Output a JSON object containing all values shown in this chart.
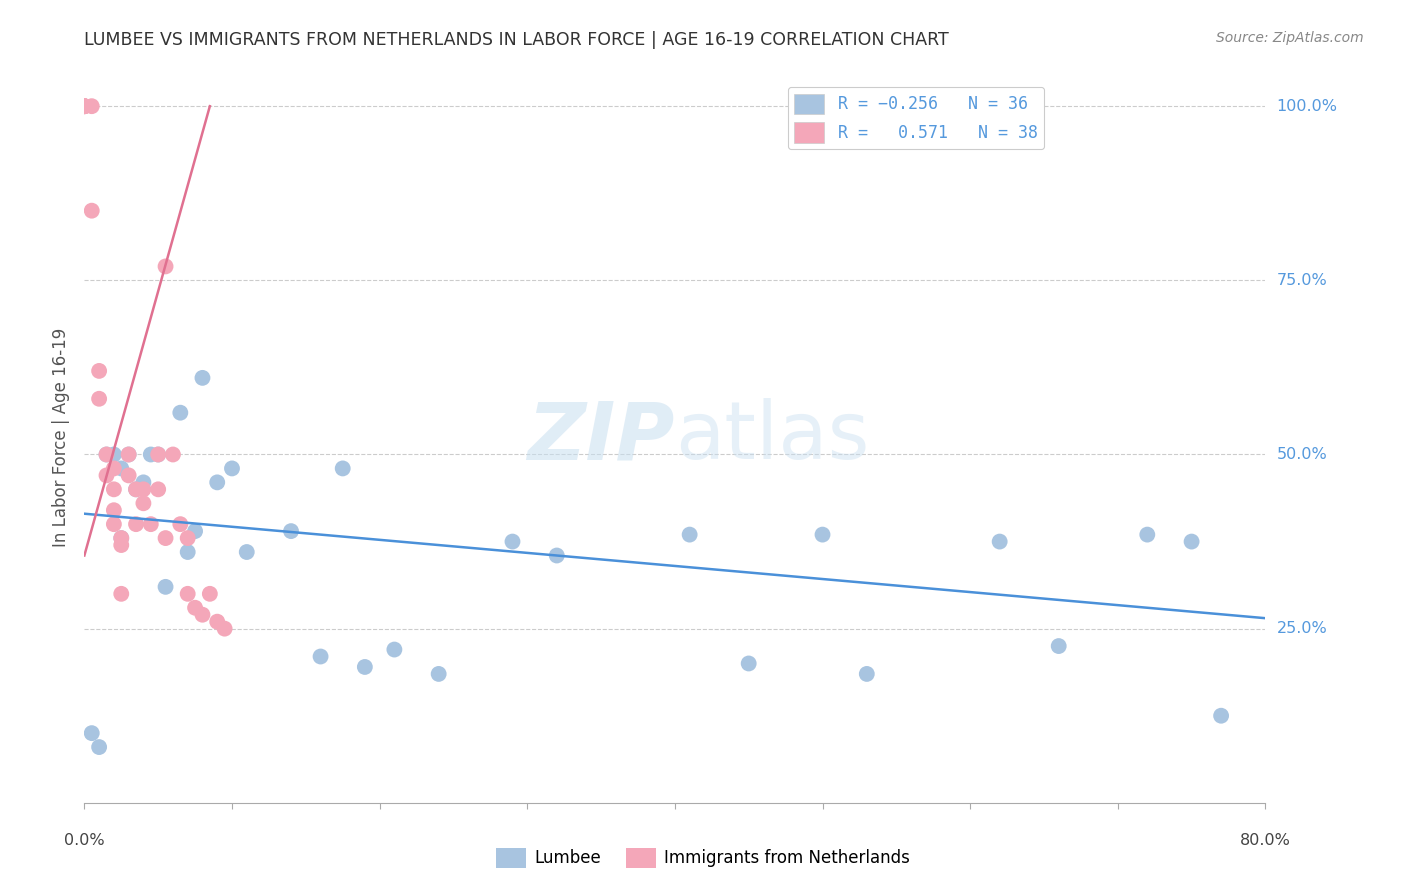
{
  "title": "LUMBEE VS IMMIGRANTS FROM NETHERLANDS IN LABOR FORCE | AGE 16-19 CORRELATION CHART",
  "source": "Source: ZipAtlas.com",
  "ylabel": "In Labor Force | Age 16-19",
  "watermark": "ZIPatlas",
  "legend_r1_color": "-0.256",
  "legend_r1_n": "36",
  "legend_r2_color": "0.571",
  "legend_r2_n": "38",
  "color_lumbee": "#a8c4e0",
  "color_netherlands": "#f4a7b9",
  "color_blue_line": "#4a90d9",
  "color_pink_line": "#e07090",
  "color_right_labels": "#5599dd",
  "lumbee_x": [
    0.005,
    0.01,
    0.015,
    0.02,
    0.025,
    0.025,
    0.03,
    0.035,
    0.04,
    0.045,
    0.05,
    0.055,
    0.065,
    0.07,
    0.075,
    0.08,
    0.09,
    0.1,
    0.11,
    0.14,
    0.16,
    0.175,
    0.19,
    0.21,
    0.24,
    0.29,
    0.32,
    0.41,
    0.45,
    0.5,
    0.53,
    0.62,
    0.66,
    0.72,
    0.75,
    0.77
  ],
  "lumbee_y": [
    0.1,
    0.08,
    0.5,
    0.5,
    0.48,
    0.38,
    0.5,
    0.45,
    0.46,
    0.5,
    0.5,
    0.31,
    0.56,
    0.36,
    0.39,
    0.61,
    0.46,
    0.48,
    0.36,
    0.39,
    0.21,
    0.48,
    0.195,
    0.22,
    0.185,
    0.375,
    0.355,
    0.385,
    0.2,
    0.385,
    0.185,
    0.375,
    0.225,
    0.385,
    0.375,
    0.125
  ],
  "netherlands_x": [
    0.0,
    0.0,
    0.0,
    0.0,
    0.0,
    0.005,
    0.005,
    0.01,
    0.01,
    0.015,
    0.015,
    0.02,
    0.02,
    0.02,
    0.02,
    0.025,
    0.025,
    0.025,
    0.03,
    0.03,
    0.035,
    0.035,
    0.04,
    0.04,
    0.045,
    0.05,
    0.05,
    0.055,
    0.055,
    0.06,
    0.065,
    0.07,
    0.07,
    0.075,
    0.08,
    0.085,
    0.09,
    0.095
  ],
  "netherlands_y": [
    1.0,
    1.0,
    1.0,
    1.0,
    1.0,
    1.0,
    0.85,
    0.62,
    0.58,
    0.5,
    0.47,
    0.48,
    0.45,
    0.42,
    0.4,
    0.38,
    0.37,
    0.3,
    0.5,
    0.47,
    0.45,
    0.4,
    0.45,
    0.43,
    0.4,
    0.5,
    0.45,
    0.77,
    0.38,
    0.5,
    0.4,
    0.38,
    0.3,
    0.28,
    0.27,
    0.3,
    0.26,
    0.25
  ],
  "blue_line_x": [
    0.0,
    0.8
  ],
  "blue_line_y": [
    0.415,
    0.265
  ],
  "pink_line_x": [
    0.0,
    0.085
  ],
  "pink_line_y": [
    0.355,
    1.0
  ],
  "xlim": [
    0.0,
    0.8
  ],
  "ylim": [
    0.0,
    1.05
  ],
  "yticks": [
    0.25,
    0.5,
    0.75,
    1.0
  ],
  "ytick_labels": [
    "25.0%",
    "50.0%",
    "75.0%",
    "100.0%"
  ]
}
